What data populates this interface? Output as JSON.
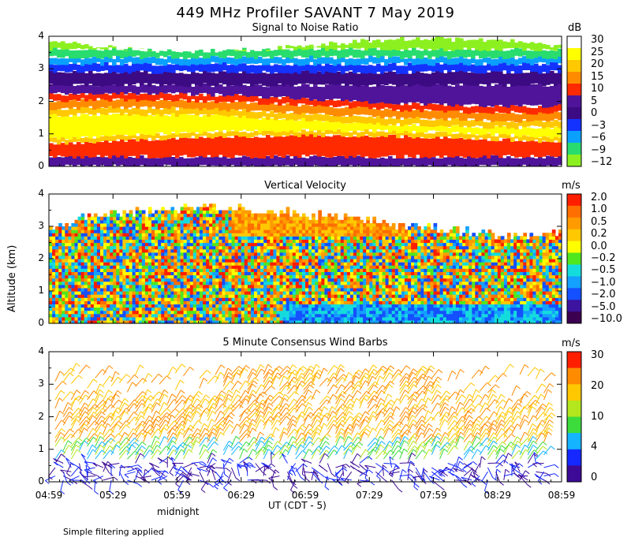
{
  "title": "449 MHz Profiler SAVANT  7 May 2019",
  "y_axis_label": "Altitude (km)",
  "x_axis_label": "UT  (CDT - 5)",
  "midnight_label": "midnight",
  "footer_note": "Simple filtering applied",
  "chart_data": [
    {
      "type": "heatmap",
      "title": "Signal to Noise Ratio",
      "colorbar_unit": "dB",
      "colorbar_ticks": [
        "30",
        "25",
        "20",
        "15",
        "10",
        "5",
        "0",
        "−3",
        "−6",
        "−9",
        "−12"
      ],
      "colorbar_colors": [
        "#ffffff",
        "#ffff00",
        "#ffc800",
        "#ff8c00",
        "#ff2a00",
        "#50149a",
        "#3c0a82",
        "#1432ff",
        "#0aa0ff",
        "#28dc6e",
        "#8cf020"
      ],
      "xlabels": [
        "04:59",
        "05:29",
        "05:59",
        "06:29",
        "06:59",
        "07:29",
        "07:59",
        "08:29",
        "08:59"
      ],
      "ylabels": [
        "0",
        "1",
        "2",
        "3",
        "4"
      ],
      "ylim": [
        0,
        4
      ]
    },
    {
      "type": "heatmap",
      "title": "Vertical Velocity",
      "colorbar_unit": "m/s",
      "colorbar_ticks": [
        "2.0",
        "1.0",
        "0.5",
        "0.2",
        "0.0",
        "−0.2",
        "−0.5",
        "−1.0",
        "−2.0",
        "−5.0",
        "−10.0"
      ],
      "colorbar_colors": [
        "#ff1e00",
        "#ff6e00",
        "#ff9b00",
        "#ffc800",
        "#ffff00",
        "#50e61e",
        "#14dcdc",
        "#14a0ff",
        "#1450ff",
        "#3c14a0",
        "#3c0050"
      ],
      "xlabels": [
        "04:59",
        "05:29",
        "05:59",
        "06:29",
        "06:59",
        "07:29",
        "07:59",
        "08:29",
        "08:59"
      ],
      "ylabels": [
        "0",
        "1",
        "2",
        "3",
        "4"
      ],
      "ylim": [
        0,
        4
      ]
    },
    {
      "type": "scatter",
      "title": "5 Minute Consensus Wind Barbs",
      "colorbar_unit": "m/s",
      "colorbar_ticks": [
        "30",
        "20",
        "10",
        "4",
        "0"
      ],
      "colorbar_colors": [
        "#ff1e00",
        "#ff8c00",
        "#ffc800",
        "#b4e61e",
        "#3cdc3c",
        "#14b4ff",
        "#1428ff",
        "#3c0a96"
      ],
      "xlabels": [
        "04:59",
        "05:29",
        "05:59",
        "06:29",
        "06:59",
        "07:29",
        "07:59",
        "08:29",
        "08:59"
      ],
      "ylabels": [
        "0",
        "1",
        "2",
        "3",
        "4"
      ],
      "ylim": [
        0,
        4
      ]
    }
  ]
}
